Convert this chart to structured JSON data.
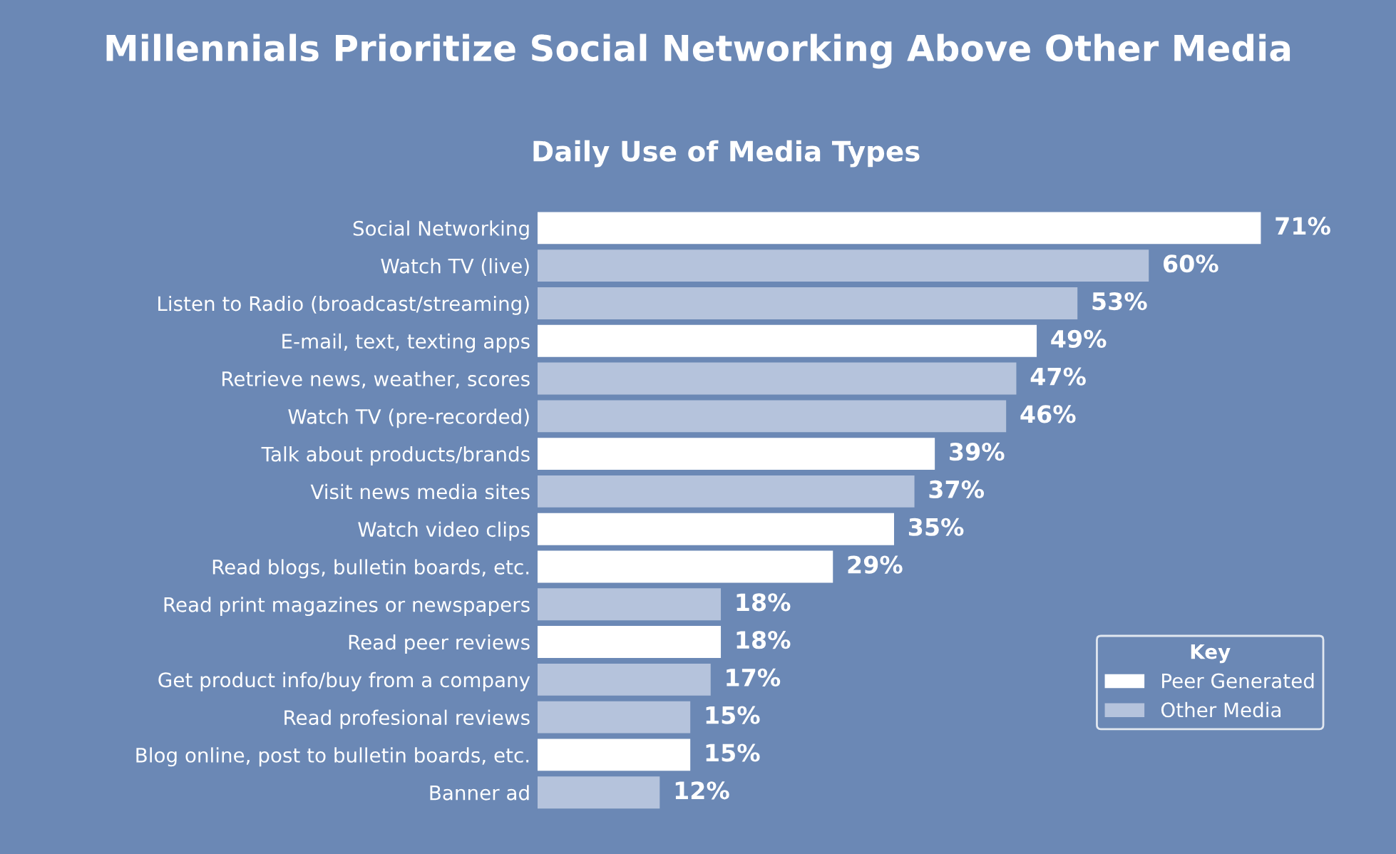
{
  "chart_data": {
    "type": "bar",
    "orientation": "horizontal",
    "title": "Millennials Prioritize Social Networking Above Other Media",
    "subtitle": "Daily Use of Media Types",
    "legend_title": "Key",
    "legend": "bottom right",
    "categories": [
      "Social Networking",
      "Watch TV (live)",
      "Listen to Radio (broadcast/streaming)",
      "E-mail, text, texting apps",
      "Retrieve news, weather, scores",
      "Watch TV (pre-recorded)",
      "Talk about products/brands",
      "Visit news media sites",
      "Watch video clips",
      "Read blogs, bulletin boards, etc.",
      "Read print magazines or newspapers",
      "Read peer reviews",
      "Get product info/buy from a company",
      "Read profesional reviews",
      "Blog online, post to bulletin boards, etc.",
      "Banner ad"
    ],
    "series": [
      {
        "name": "Peer Generated",
        "color": "#ffffff",
        "values": [
          71,
          null,
          null,
          49,
          null,
          null,
          39,
          null,
          35,
          29,
          null,
          18,
          null,
          null,
          15,
          null
        ],
        "value_labels": [
          "71%",
          null,
          null,
          "49%",
          null,
          null,
          "39%",
          null,
          "35%",
          "29%",
          null,
          "18%",
          null,
          null,
          "15%",
          null
        ]
      },
      {
        "name": "Other Media",
        "color": "#b5c3dc",
        "values": [
          null,
          60,
          53,
          null,
          47,
          46,
          null,
          37,
          null,
          null,
          18,
          null,
          17,
          15,
          null,
          12
        ],
        "value_labels": [
          null,
          "60%",
          "53%",
          null,
          "47%",
          "46%",
          null,
          "37%",
          null,
          null,
          "18%",
          null,
          "17%",
          "15%",
          null,
          "12%"
        ]
      }
    ]
  }
}
